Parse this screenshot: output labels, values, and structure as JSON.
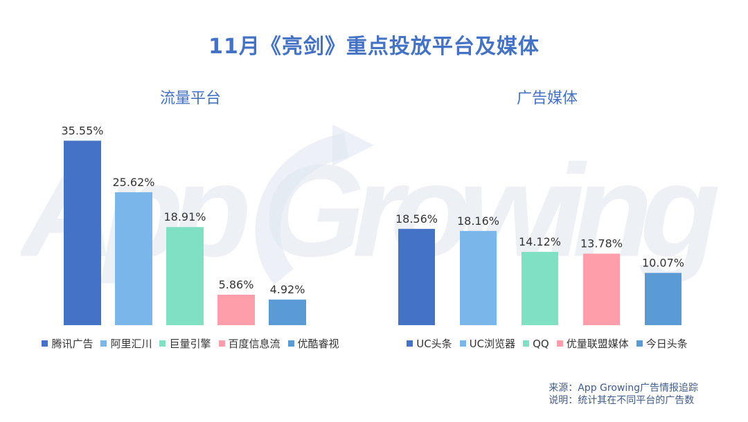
{
  "title": "11月《亮剑》重点投放平台及媒体",
  "watermark": "App Growing",
  "footnote": {
    "source": "来源：App Growing广告情报追踪",
    "note": "说明：统计其在不同平台的广告数"
  },
  "chart_data": [
    {
      "type": "bar",
      "title": "流量平台",
      "categories": [
        "腾讯广告",
        "阿里汇川",
        "巨量引擎",
        "百度信息流",
        "优酷睿视"
      ],
      "values": [
        35.55,
        25.62,
        18.91,
        5.86,
        4.92
      ],
      "value_labels": [
        "35.55%",
        "25.62%",
        "18.91%",
        "5.86%",
        "4.92%"
      ],
      "colors": [
        "#4472c4",
        "#7bb6ea",
        "#7fe0c3",
        "#ff9eab",
        "#5b9bd5"
      ],
      "unit": "%",
      "ylim": [
        0,
        36
      ],
      "grid": false,
      "legend": "bottom"
    },
    {
      "type": "bar",
      "title": "广告媒体",
      "categories": [
        "UC头条",
        "UC浏览器",
        "QQ",
        "优量联盟媒体",
        "今日头条"
      ],
      "values": [
        18.56,
        18.16,
        14.12,
        13.78,
        10.07
      ],
      "value_labels": [
        "18.56%",
        "18.16%",
        "14.12%",
        "13.78%",
        "10.07%"
      ],
      "colors": [
        "#4472c4",
        "#7bb6ea",
        "#7fe0c3",
        "#ff9eab",
        "#5b9bd5"
      ],
      "unit": "%",
      "ylim": [
        0,
        36
      ],
      "grid": false,
      "legend": "bottom"
    }
  ]
}
